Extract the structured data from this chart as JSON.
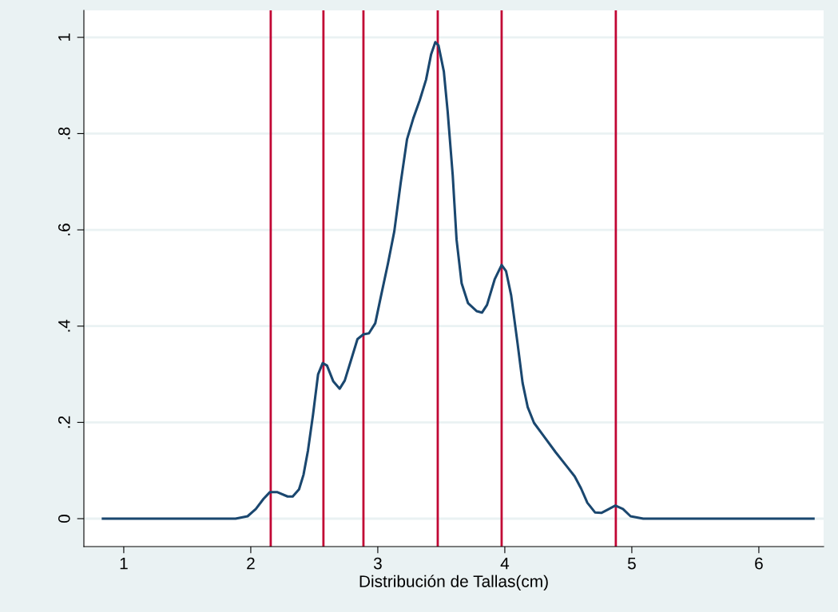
{
  "chart_data": {
    "type": "line",
    "xlabel": "Distribución de Tallas(cm)",
    "xlim": [
      0.686,
      6.51
    ],
    "ylim": [
      -0.058,
      1.056
    ],
    "xticks": [
      1,
      2,
      3,
      4,
      5,
      6
    ],
    "yticks": [
      0,
      {
        "value": 0.2,
        "label": ".2"
      },
      {
        "value": 0.4,
        "label": ".4"
      },
      {
        "value": 0.6,
        "label": ".6"
      },
      {
        "value": 0.8,
        "label": ".8"
      },
      1
    ],
    "grid": "y",
    "legend": false,
    "marker": "none",
    "line_style": "solid",
    "series": [
      {
        "color": "#1a476f",
        "x": [
          0.836,
          1.88,
          1.975,
          2.04,
          2.1,
          2.15,
          2.21,
          2.29,
          2.33,
          2.38,
          2.415,
          2.45,
          2.49,
          2.53,
          2.566,
          2.6,
          2.65,
          2.7,
          2.74,
          2.79,
          2.84,
          2.887,
          2.93,
          2.98,
          3.02,
          3.08,
          3.13,
          3.18,
          3.23,
          3.28,
          3.33,
          3.38,
          3.42,
          3.453,
          3.478,
          3.52,
          3.55,
          3.59,
          3.62,
          3.66,
          3.71,
          3.78,
          3.82,
          3.86,
          3.92,
          3.975,
          4.01,
          4.05,
          4.1,
          4.14,
          4.18,
          4.23,
          4.3,
          4.4,
          4.49,
          4.55,
          4.6,
          4.65,
          4.71,
          4.76,
          4.87,
          4.93,
          4.99,
          5.09,
          6.43
        ],
        "values": [
          0,
          0,
          0.005,
          0.02,
          0.041,
          0.055,
          0.055,
          0.046,
          0.046,
          0.061,
          0.091,
          0.141,
          0.216,
          0.3,
          0.323,
          0.318,
          0.285,
          0.27,
          0.287,
          0.33,
          0.373,
          0.383,
          0.385,
          0.406,
          0.456,
          0.53,
          0.597,
          0.697,
          0.788,
          0.832,
          0.869,
          0.912,
          0.965,
          0.99,
          0.983,
          0.929,
          0.846,
          0.713,
          0.58,
          0.489,
          0.448,
          0.431,
          0.428,
          0.444,
          0.497,
          0.527,
          0.514,
          0.464,
          0.365,
          0.282,
          0.232,
          0.199,
          0.174,
          0.138,
          0.108,
          0.088,
          0.063,
          0.033,
          0.013,
          0.012,
          0.027,
          0.02,
          0.005,
          0,
          0
        ]
      }
    ],
    "ref_lines": [
      {
        "axis": "x",
        "value": 2.157,
        "color": "#c10534"
      },
      {
        "axis": "x",
        "value": 2.572,
        "color": "#c10534"
      },
      {
        "axis": "x",
        "value": 2.887,
        "color": "#c10534"
      },
      {
        "axis": "x",
        "value": 3.472,
        "color": "#c10534"
      },
      {
        "axis": "x",
        "value": 3.975,
        "color": "#c10534"
      },
      {
        "axis": "x",
        "value": 4.874,
        "color": "#c10534"
      }
    ]
  }
}
